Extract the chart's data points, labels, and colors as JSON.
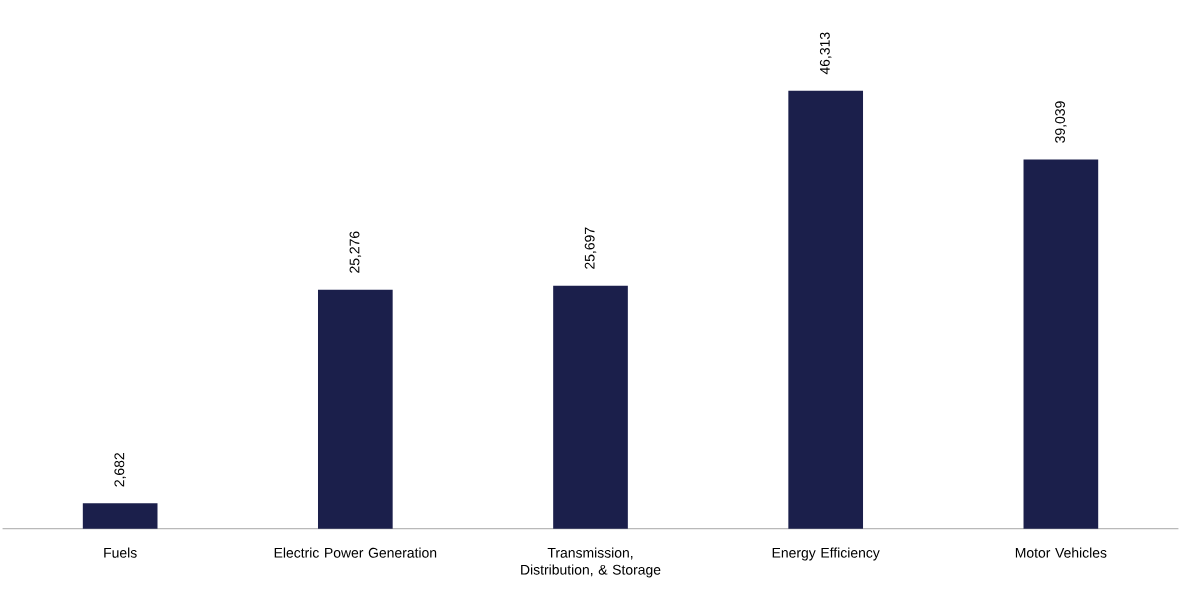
{
  "chart_data": {
    "type": "bar",
    "categories": [
      "Fuels",
      "Electric Power Generation",
      "Transmission, Distribution, & Storage",
      "Energy Efficiency",
      "Motor Vehicles"
    ],
    "values": [
      2682,
      25276,
      25697,
      46313,
      39039
    ],
    "value_labels": [
      "2,682",
      "25,276",
      "25,697",
      "46,313",
      "39,039"
    ],
    "color": "#1b1f4b"
  }
}
